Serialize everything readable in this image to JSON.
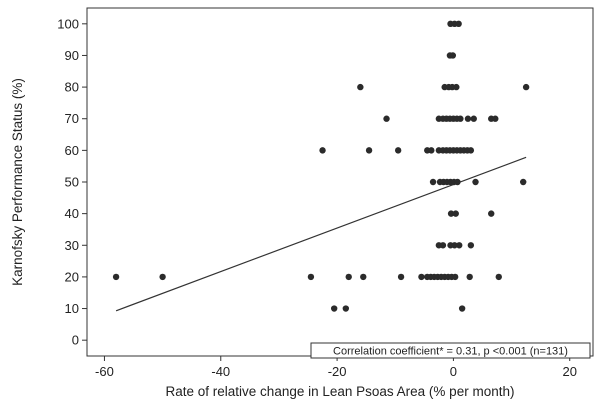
{
  "chart_data": {
    "type": "scatter",
    "xlabel": "Rate of relative change in Lean Psoas Area (% per month)",
    "ylabel": "Karnofsky Performance Status (%)",
    "xlim": [
      -63,
      24
    ],
    "ylim": [
      -5,
      105
    ],
    "x_ticks": [
      -60,
      -40,
      -20,
      0,
      20
    ],
    "y_ticks": [
      0,
      10,
      20,
      30,
      40,
      50,
      60,
      70,
      80,
      90,
      100
    ],
    "grid": false,
    "annotation": "Correlation coefficient* = 0.31, p <0.001 (n=131)",
    "fit_line": {
      "x": [
        -58,
        12.5
      ],
      "y": [
        9.3,
        57.8
      ]
    },
    "points": [
      {
        "x": -0.5,
        "y": 100
      },
      {
        "x": 0.2,
        "y": 100
      },
      {
        "x": 0.9,
        "y": 100
      },
      {
        "x": -0.6,
        "y": 90
      },
      {
        "x": -0.1,
        "y": 90
      },
      {
        "x": -16,
        "y": 80
      },
      {
        "x": -1.5,
        "y": 80
      },
      {
        "x": -0.8,
        "y": 80
      },
      {
        "x": -0.2,
        "y": 80
      },
      {
        "x": 0.5,
        "y": 80
      },
      {
        "x": 12.5,
        "y": 80
      },
      {
        "x": -11.5,
        "y": 70
      },
      {
        "x": -2.5,
        "y": 70
      },
      {
        "x": -1.8,
        "y": 70
      },
      {
        "x": -1.2,
        "y": 70
      },
      {
        "x": -0.6,
        "y": 70
      },
      {
        "x": 0,
        "y": 70
      },
      {
        "x": 0.6,
        "y": 70
      },
      {
        "x": 1.2,
        "y": 70
      },
      {
        "x": 2.5,
        "y": 70
      },
      {
        "x": 3.5,
        "y": 70
      },
      {
        "x": 6.5,
        "y": 70
      },
      {
        "x": 7.2,
        "y": 70
      },
      {
        "x": -22.5,
        "y": 60
      },
      {
        "x": -14.5,
        "y": 60
      },
      {
        "x": -9.5,
        "y": 60
      },
      {
        "x": -4.5,
        "y": 60
      },
      {
        "x": -3.8,
        "y": 60
      },
      {
        "x": -2.5,
        "y": 60
      },
      {
        "x": -1.8,
        "y": 60
      },
      {
        "x": -1.2,
        "y": 60
      },
      {
        "x": -0.6,
        "y": 60
      },
      {
        "x": 0,
        "y": 60
      },
      {
        "x": 0.6,
        "y": 60
      },
      {
        "x": 1.2,
        "y": 60
      },
      {
        "x": 1.8,
        "y": 60
      },
      {
        "x": 2.4,
        "y": 60
      },
      {
        "x": 3,
        "y": 60
      },
      {
        "x": -3.5,
        "y": 50
      },
      {
        "x": -2.3,
        "y": 50
      },
      {
        "x": -1.7,
        "y": 50
      },
      {
        "x": -1.1,
        "y": 50
      },
      {
        "x": -0.5,
        "y": 50
      },
      {
        "x": 0.1,
        "y": 50
      },
      {
        "x": 0.7,
        "y": 50
      },
      {
        "x": 3.8,
        "y": 50
      },
      {
        "x": 12,
        "y": 50
      },
      {
        "x": -0.4,
        "y": 40
      },
      {
        "x": 0.4,
        "y": 40
      },
      {
        "x": 6.5,
        "y": 40
      },
      {
        "x": -2.5,
        "y": 30
      },
      {
        "x": -1.8,
        "y": 30
      },
      {
        "x": -0.5,
        "y": 30
      },
      {
        "x": 0.2,
        "y": 30
      },
      {
        "x": 1,
        "y": 30
      },
      {
        "x": 3,
        "y": 30
      },
      {
        "x": -58,
        "y": 20
      },
      {
        "x": -50,
        "y": 20
      },
      {
        "x": -24.5,
        "y": 20
      },
      {
        "x": -18,
        "y": 20
      },
      {
        "x": -15.5,
        "y": 20
      },
      {
        "x": -9,
        "y": 20
      },
      {
        "x": -5.5,
        "y": 20
      },
      {
        "x": -4.5,
        "y": 20
      },
      {
        "x": -3.9,
        "y": 20
      },
      {
        "x": -3.3,
        "y": 20
      },
      {
        "x": -2.7,
        "y": 20
      },
      {
        "x": -2.1,
        "y": 20
      },
      {
        "x": -1.5,
        "y": 20
      },
      {
        "x": -0.9,
        "y": 20
      },
      {
        "x": -0.3,
        "y": 20
      },
      {
        "x": 0.3,
        "y": 20
      },
      {
        "x": 2.8,
        "y": 20
      },
      {
        "x": 7.8,
        "y": 20
      },
      {
        "x": -20.5,
        "y": 10
      },
      {
        "x": -18.5,
        "y": 10
      },
      {
        "x": 1.5,
        "y": 10
      }
    ]
  }
}
